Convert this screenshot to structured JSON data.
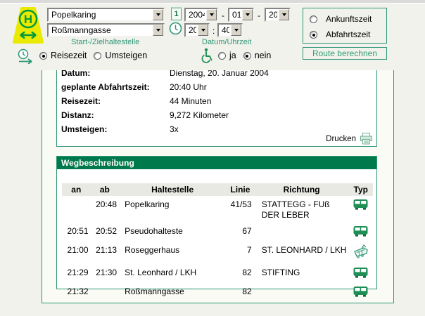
{
  "logo": {
    "letter": "H"
  },
  "form": {
    "start_stop": "Popelkaring",
    "dest_stop": "Roßmanngasse",
    "stops_label": "Start-/Zielhaltestelle",
    "datetime_label": "Datum/Uhrzeit",
    "calendar_icon_digit": "1",
    "date_year": "2004",
    "date_month": "01",
    "date_day": "20",
    "date_separator": "-",
    "time_hour": "20",
    "time_minute": "40",
    "time_separator": ":",
    "option_travel_time": "Reisezeit",
    "option_transfers": "Umsteigen",
    "option_yes": "ja",
    "option_no": "nein",
    "option_arrival": "Ankunftszeit",
    "option_departure": "Abfahrtszeit",
    "submit_label": "Route berechnen"
  },
  "summary": {
    "rows": [
      {
        "label": "Datum:",
        "value": "Dienstag, 20. Januar 2004"
      },
      {
        "label": "geplante Abfahrtszeit:",
        "value": "20:40 Uhr"
      },
      {
        "label": "Reisezeit:",
        "value": "44 Minuten"
      },
      {
        "label": "Distanz:",
        "value": "9,272 Kilometer"
      },
      {
        "label": "Umsteigen:",
        "value": "3x"
      }
    ],
    "print_label": "Drucken"
  },
  "wegbeschreibung": {
    "title": "Wegbeschreibung",
    "columns": [
      "an",
      "ab",
      "Haltestelle",
      "Linie",
      "Richtung",
      "Typ"
    ],
    "rows": [
      {
        "an": "",
        "ab": "20:48",
        "haltestelle": "Popelkaring",
        "linie": "41/53",
        "richtung": "STATTEGG - FUß DER LEBER",
        "typ": "bus"
      },
      {
        "an": "20:51",
        "ab": "20:52",
        "haltestelle": "Pseudohalteste",
        "linie": "67",
        "richtung": "",
        "typ": "bus"
      },
      {
        "an": "21:00",
        "ab": "21:13",
        "haltestelle": "Roseggerhaus",
        "linie": "7",
        "richtung": "ST. LEONHARD / LKH",
        "typ": "tram"
      },
      {
        "an": "21:29",
        "ab": "21:30",
        "haltestelle": "St. Leonhard / LKH",
        "linie": "82",
        "richtung": "STIFTING",
        "typ": "bus"
      },
      {
        "an": "21:32",
        "ab": "",
        "haltestelle": "Roßmanngasse",
        "linie": "82",
        "richtung": "",
        "typ": "bus"
      }
    ]
  },
  "colors": {
    "accent": "#2E9678",
    "header-green": "#00794C",
    "icon-green": "#1E8E55",
    "logo-yellow": "#EAEA00",
    "logo-green": "#009A3D"
  }
}
